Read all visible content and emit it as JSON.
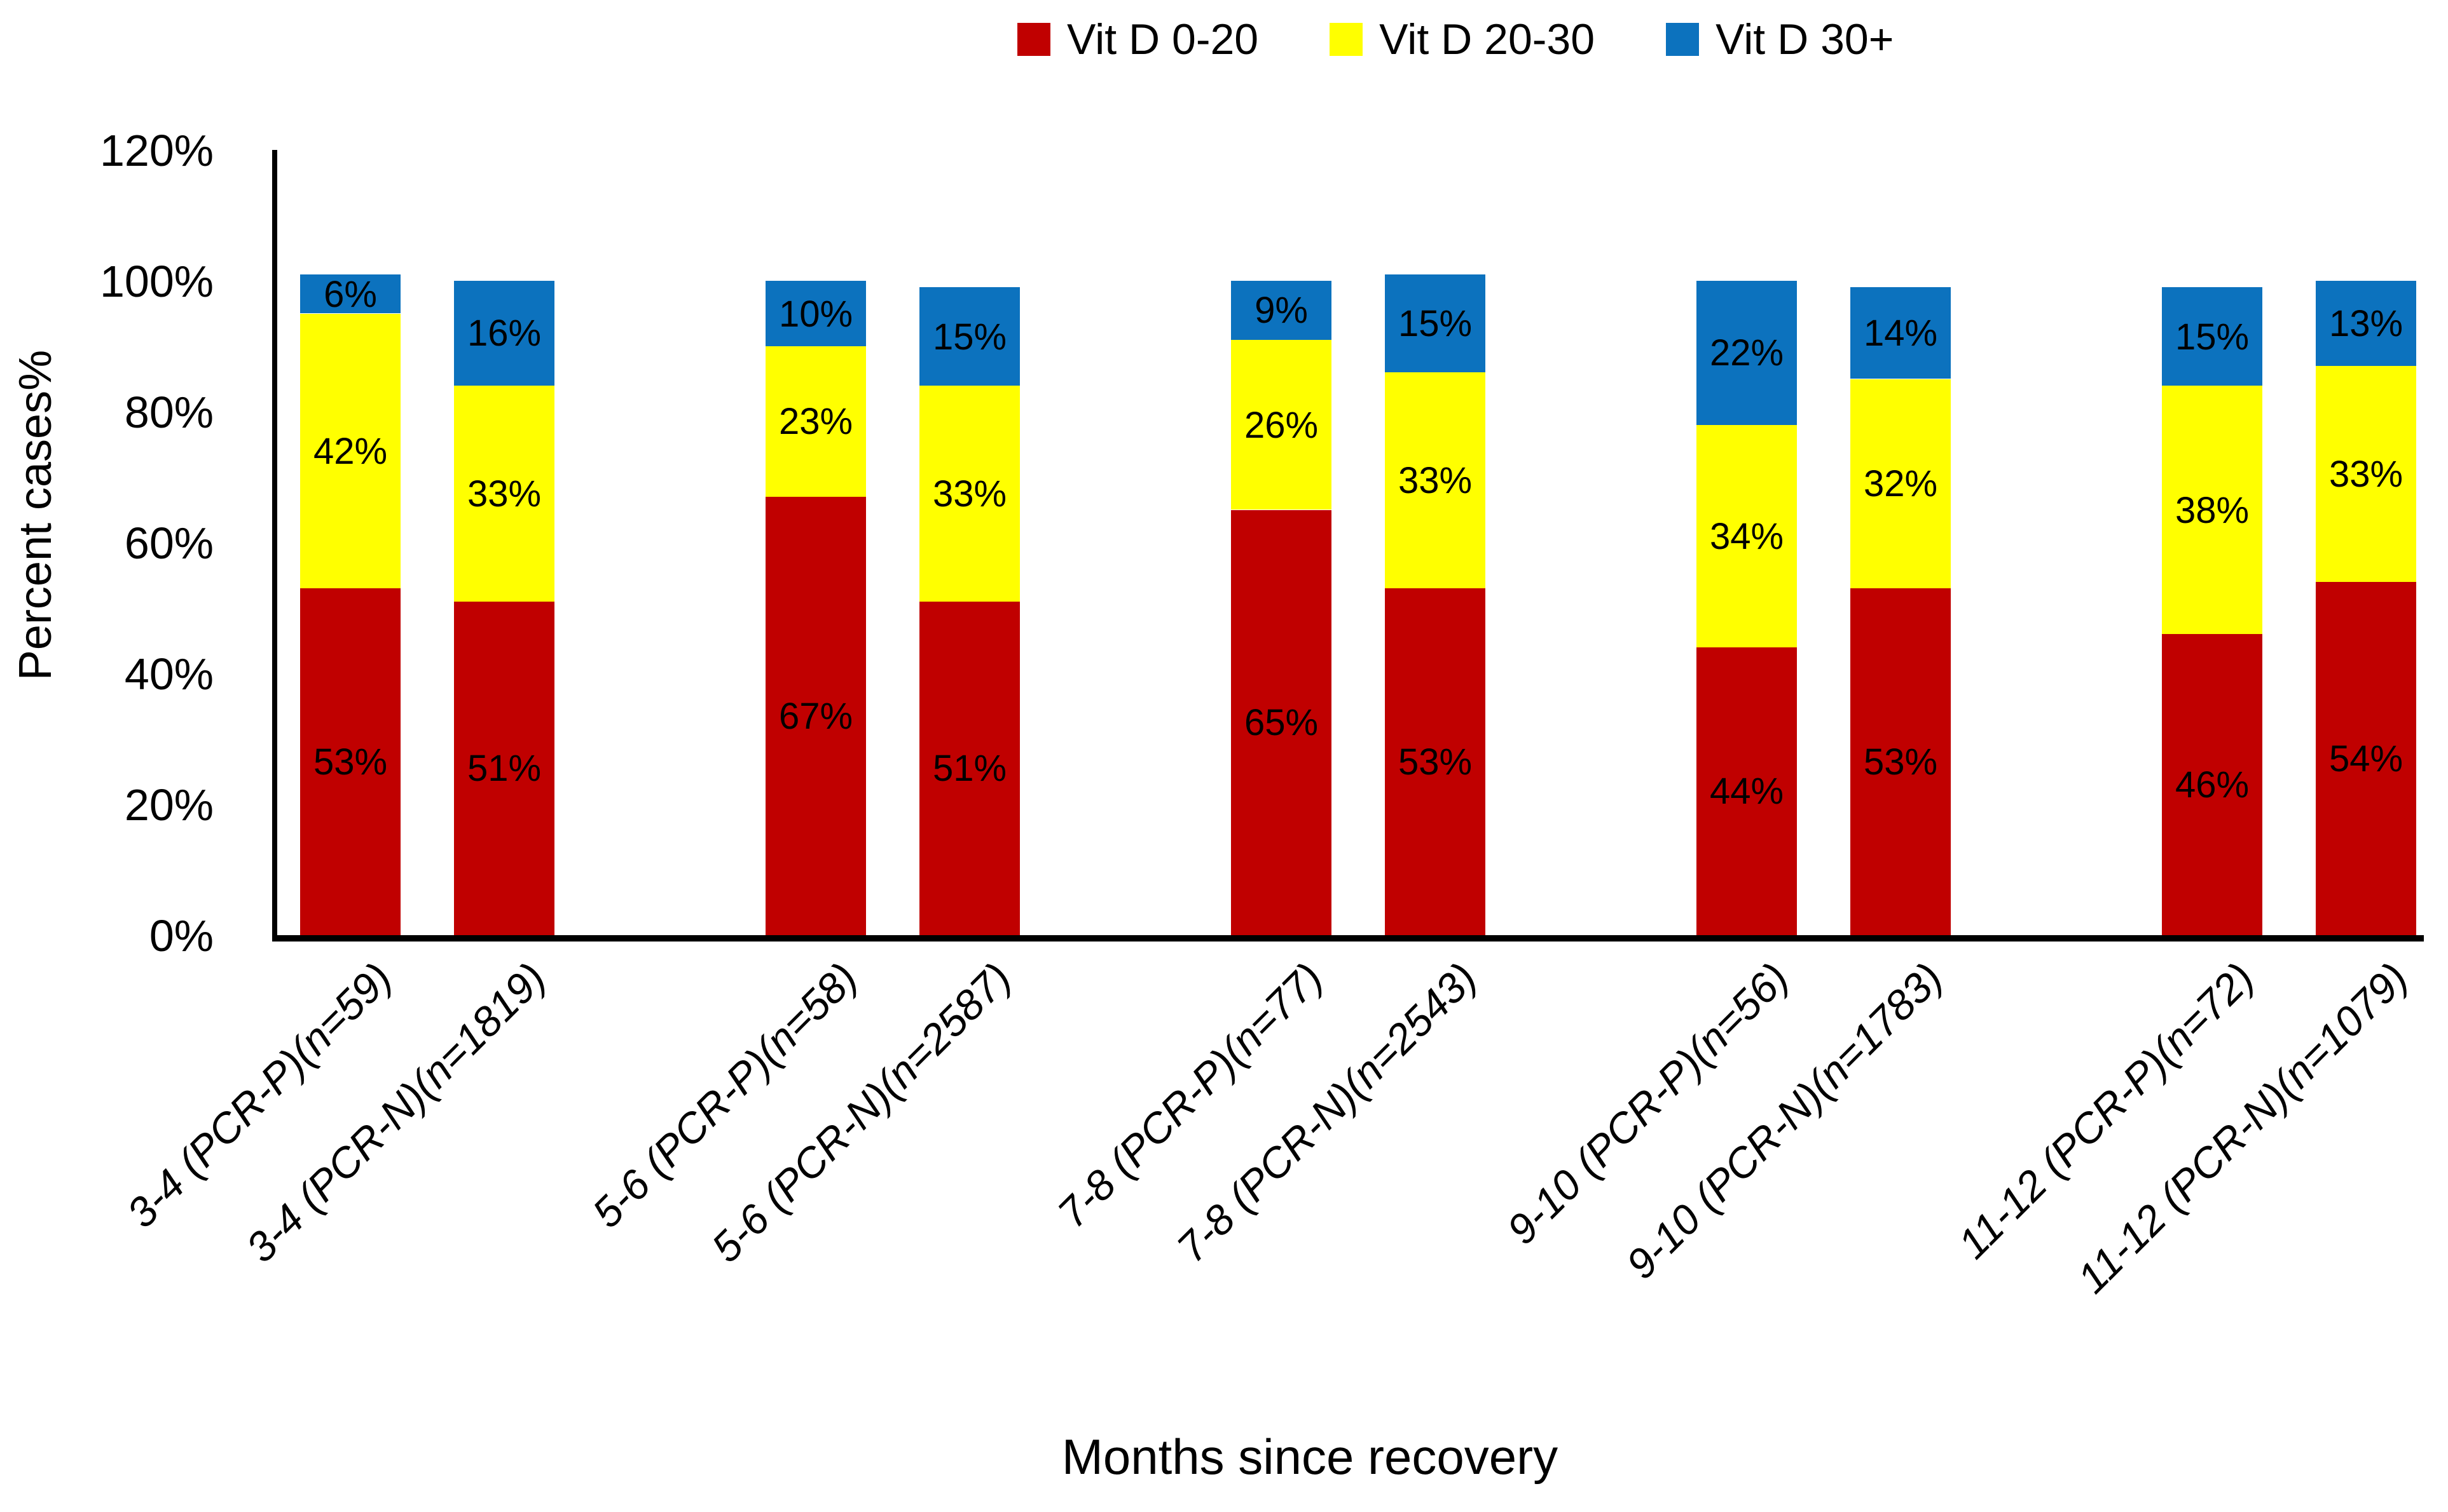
{
  "chart_data": {
    "type": "bar",
    "stacked": true,
    "title": "",
    "xlabel": "Months since recovery",
    "ylabel": "Percent cases%",
    "ylim": [
      0,
      120
    ],
    "ytick_labels": [
      "0%",
      "20%",
      "40%",
      "60%",
      "80%",
      "100%",
      "120%"
    ],
    "grid": false,
    "legend_position": "top-center",
    "data_label_suffix": "%",
    "categories": [
      "3-4 (PCR-P)(n=59)",
      "3-4 (PCR-N)(n=1819)",
      "5-6 (PCR-P)(n=58)",
      "5-6 (PCR-N)(n=2587)",
      "7-8 (PCR-P)(n=77)",
      "7-8 (PCR-N)(n=2543)",
      "9-10 (PCR-P)(n=56)",
      "9-10 (PCR-N)(n=1783)",
      "11-12 (PCR-P)(n=72)",
      "11-12 (PCR-N)(n=1079)"
    ],
    "series": [
      {
        "name": "Vit D 0-20",
        "color": "#C00000",
        "values": [
          53,
          51,
          67,
          51,
          65,
          53,
          44,
          53,
          46,
          54
        ]
      },
      {
        "name": "Vit D 20-30",
        "color": "#FFFF00",
        "values": [
          42,
          33,
          23,
          33,
          26,
          33,
          34,
          32,
          38,
          33
        ]
      },
      {
        "name": "Vit D 30+",
        "color": "#0C72BE",
        "values": [
          6,
          16,
          10,
          15,
          9,
          15,
          22,
          14,
          15,
          13
        ]
      }
    ],
    "axis_color": "#000000",
    "text_color": "#000000"
  }
}
